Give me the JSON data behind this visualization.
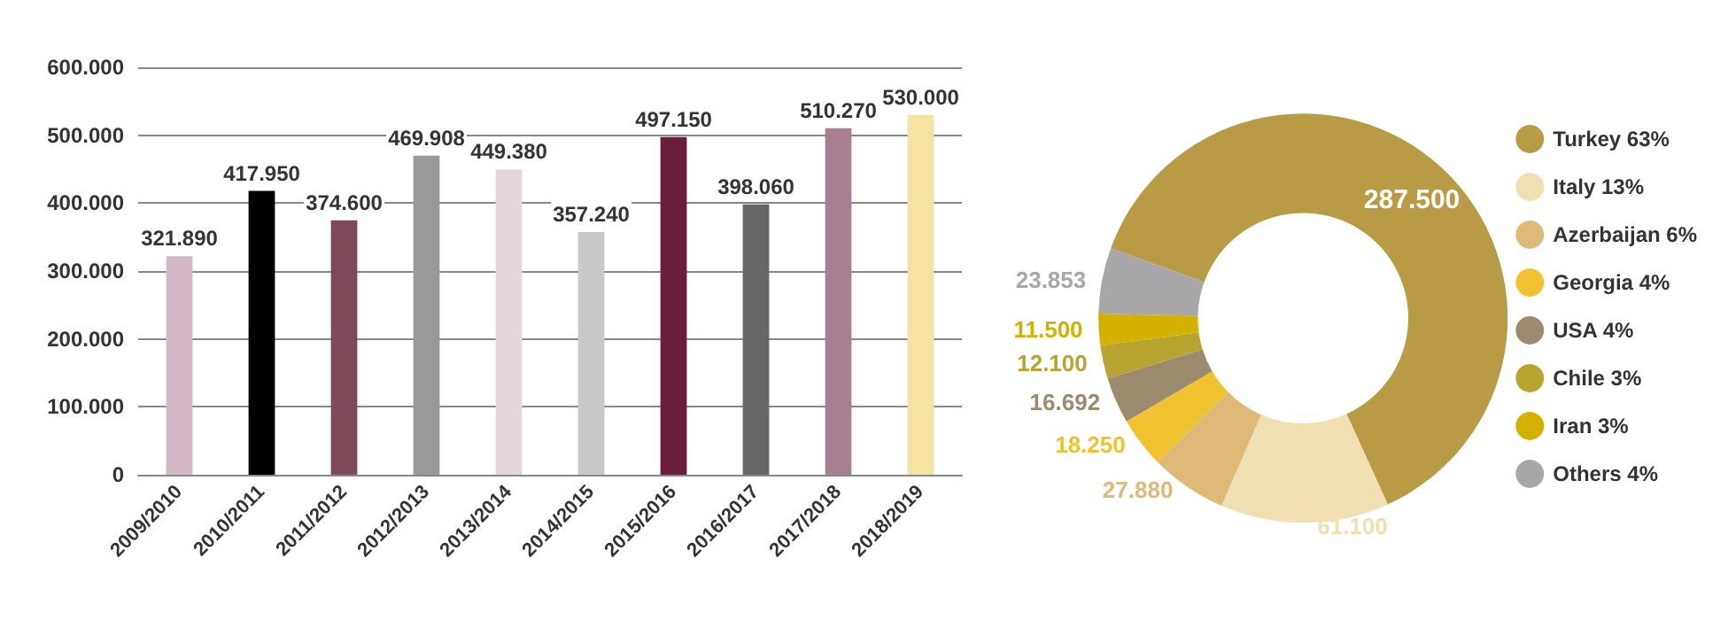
{
  "chart_data": [
    {
      "type": "bar",
      "categories": [
        "2009/2010",
        "2010/2011",
        "2011/2012",
        "2012/2013",
        "2013/2014",
        "2014/2015",
        "2015/2016",
        "2016/2017",
        "2017/2018",
        "2018/2019"
      ],
      "values": [
        321890,
        417950,
        374600,
        469908,
        449380,
        357240,
        497150,
        398060,
        510270,
        530000
      ],
      "value_labels": [
        "321.890",
        "417.950",
        "374.600",
        "469.908",
        "449.380",
        "357.240",
        "497.150",
        "398.060",
        "510.270",
        "530.000"
      ],
      "colors": [
        "#d3b8c8",
        "#000000",
        "#7e4a5a",
        "#999999",
        "#e2d6da",
        "#c8c8c8",
        "#6a1d3c",
        "#666666",
        "#a77e92",
        "#f5e3a0"
      ],
      "ylim": [
        0,
        600000
      ],
      "yticks": [
        {
          "value": 0,
          "label": "0"
        },
        {
          "value": 100000,
          "label": "100.000"
        },
        {
          "value": 200000,
          "label": "200.000"
        },
        {
          "value": 300000,
          "label": "300.000"
        },
        {
          "value": 400000,
          "label": "400.000"
        },
        {
          "value": 500000,
          "label": "500.000"
        },
        {
          "value": 600000,
          "label": "600.000"
        }
      ],
      "grid": "y",
      "legend": false
    },
    {
      "type": "donut",
      "categories": [
        "Turkey 63%",
        "Italy 13%",
        "Azerbaijan 6%",
        "Georgia 4%",
        "USA 4%",
        "Chile 3%",
        "Iran 3%",
        "Others 4%"
      ],
      "values": [
        287500,
        61100,
        27880,
        18250,
        16692,
        12100,
        11500,
        23853
      ],
      "value_labels": [
        "287.500",
        "61.100",
        "27.880",
        "18.250",
        "16.692",
        "12.100",
        "11.500",
        "23.853"
      ],
      "colors": [
        "#b99a45",
        "#f0dfb0",
        "#dfb977",
        "#f0c230",
        "#9a8a6e",
        "#b8a531",
        "#d4b100",
        "#a8a6a8"
      ],
      "legend": "right"
    }
  ]
}
